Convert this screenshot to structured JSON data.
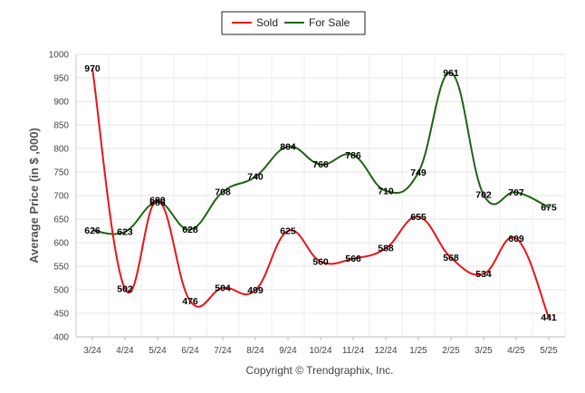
{
  "chart_data": {
    "type": "line",
    "ylabel": "Average Price (in $ ,000)",
    "xlabel": "",
    "categories": [
      "3/24",
      "4/24",
      "5/24",
      "6/24",
      "7/24",
      "8/24",
      "9/24",
      "10/24",
      "11/24",
      "12/24",
      "1/25",
      "2/25",
      "3/25",
      "4/25",
      "5/25"
    ],
    "yticks": [
      400,
      450,
      500,
      550,
      600,
      650,
      700,
      750,
      800,
      850,
      900,
      950,
      1000
    ],
    "ylim": [
      400,
      1000
    ],
    "grid": true,
    "legend_position": "top-center",
    "series": [
      {
        "name": "Sold",
        "color": "#e8141b",
        "values": [
          970,
          502,
          690,
          476,
          504,
          499,
          625,
          560,
          566,
          588,
          655,
          568,
          534,
          609,
          441
        ]
      },
      {
        "name": "For Sale",
        "color": "#1e6414",
        "values": [
          626,
          623,
          686,
          628,
          708,
          740,
          804,
          766,
          786,
          710,
          749,
          961,
          702,
          707,
          675
        ]
      }
    ]
  },
  "footer": {
    "copyright": "Copyright © Trendgraphix, Inc."
  }
}
